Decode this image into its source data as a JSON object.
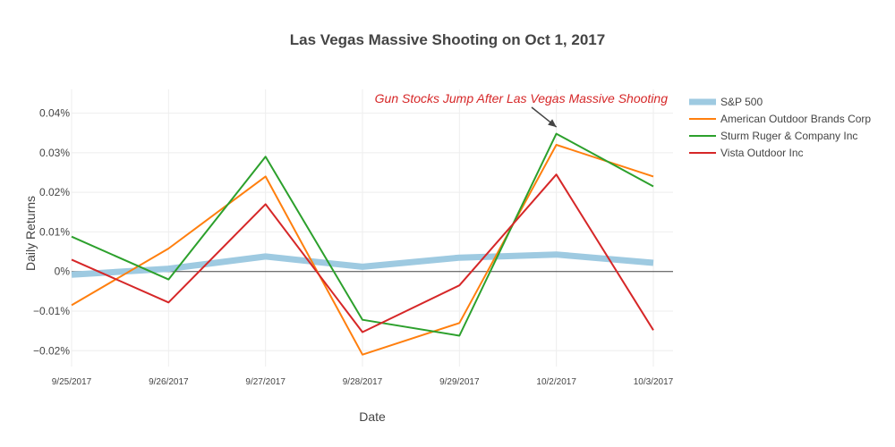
{
  "chart_data": {
    "type": "line",
    "title": "Las Vegas Massive Shooting on Oct 1, 2017",
    "xlabel": "Date",
    "ylabel": "Daily Returns",
    "categories": [
      "9/25/2017",
      "9/26/2017",
      "9/27/2017",
      "9/28/2017",
      "9/29/2017",
      "10/2/2017",
      "10/3/2017"
    ],
    "ylim": [
      -0.00024,
      0.00046
    ],
    "yticks": [
      -0.0002,
      -0.0001,
      0,
      0.0001,
      0.0002,
      0.0003,
      0.0004
    ],
    "ytick_labels": [
      "−0.02%",
      "−0.01%",
      "0%",
      "0.01%",
      "0.02%",
      "0.03%",
      "0.04%"
    ],
    "grid": true,
    "legend_position": "top-right",
    "series": [
      {
        "name": "S&P 500",
        "color": "#9ecae1",
        "values": [
          -8e-06,
          7e-06,
          3.8e-05,
          1.2e-05,
          3.5e-05,
          4.3e-05,
          2.2e-05
        ]
      },
      {
        "name": "American Outdoor Brands Corp",
        "color": "#ff7f0e",
        "values": [
          -8.5e-05,
          5.8e-05,
          0.00024,
          -0.00021,
          -0.00013,
          0.00032,
          0.00024
        ]
      },
      {
        "name": "Sturm Ruger & Company Inc",
        "color": "#2ca02c",
        "values": [
          8.8e-05,
          -2e-05,
          0.00029,
          -0.000122,
          -0.000162,
          0.000348,
          0.000215
        ]
      },
      {
        "name": "Vista Outdoor Inc",
        "color": "#d62728",
        "values": [
          3e-05,
          -7.8e-05,
          0.00017,
          -0.000153,
          -3.5e-05,
          0.000245,
          -0.000148
        ]
      }
    ],
    "annotation": {
      "text": "Gun Stocks Jump After Las Vegas Massive Shooting",
      "x": "10/2/2017",
      "y": 0.000365,
      "color": "#d62728"
    }
  }
}
